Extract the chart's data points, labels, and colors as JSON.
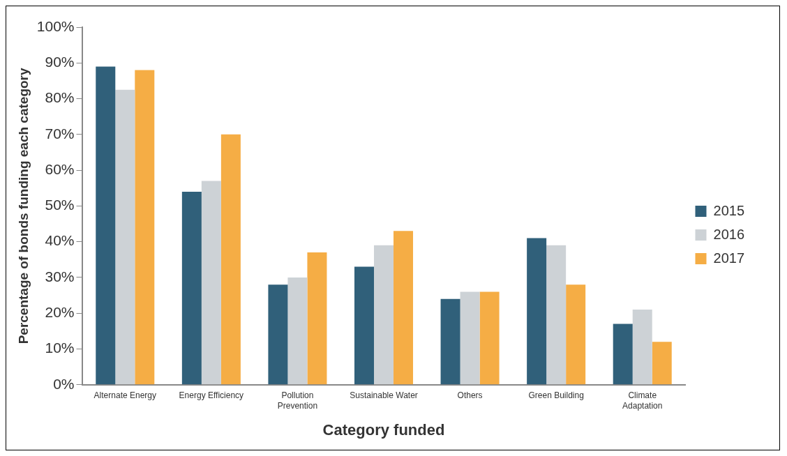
{
  "chart_data": {
    "type": "bar",
    "xlabel": "Category funded",
    "ylabel": "Percentage of bonds funding each category",
    "categories": [
      "Alternate Energy",
      "Energy Efficiency",
      "Pollution Prevention",
      "Sustainable Water",
      "Others",
      "Green Building",
      "Climate Adaptation"
    ],
    "series": [
      {
        "name": "2015",
        "color": "#30607a",
        "values": [
          89,
          54,
          28,
          33,
          24,
          41,
          17
        ]
      },
      {
        "name": "2016",
        "color": "#cdd2d6",
        "values": [
          82.5,
          57,
          30,
          39,
          26,
          39,
          21
        ]
      },
      {
        "name": "2017",
        "color": "#f5ad45",
        "values": [
          88,
          70,
          37,
          43,
          26,
          28,
          12
        ]
      }
    ],
    "ylim": [
      0,
      100
    ],
    "yticks": [
      {
        "value": 0,
        "label": "0%"
      },
      {
        "value": 10,
        "label": "10%"
      },
      {
        "value": 20,
        "label": "20%"
      },
      {
        "value": 30,
        "label": "30%"
      },
      {
        "value": 40,
        "label": "40%"
      },
      {
        "value": 50,
        "label": "50%"
      },
      {
        "value": 60,
        "label": "60%"
      },
      {
        "value": 70,
        "label": "70%"
      },
      {
        "value": 80,
        "label": "80%"
      },
      {
        "value": 90,
        "label": "90%"
      },
      {
        "value": 100,
        "label": "100%"
      }
    ],
    "grid": false,
    "legend": "right"
  }
}
